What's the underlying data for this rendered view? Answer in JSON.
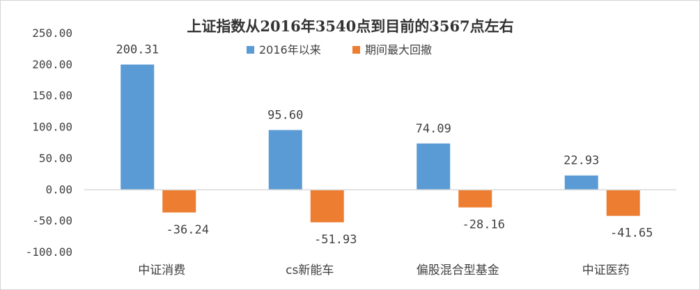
{
  "chart_data": {
    "type": "bar",
    "title": "上证指数从2016年3540点到目前的3567点左右",
    "categories": [
      "中证消费",
      "cs新能车",
      "偏股混合型基金",
      "中证医药"
    ],
    "series": [
      {
        "name": "2016年以来",
        "values": [
          200.31,
          95.6,
          74.09,
          22.93
        ],
        "labels": [
          "200.31",
          "95.60",
          "74.09",
          "22.93"
        ],
        "color": "#5b9bd5"
      },
      {
        "name": "期间最大回撤",
        "values": [
          -36.24,
          -51.93,
          -28.16,
          -41.65
        ],
        "labels": [
          "-36.24",
          "-51.93",
          "-28.16",
          "-41.65"
        ],
        "color": "#ed7d31"
      }
    ],
    "ylim": [
      -100,
      250
    ],
    "yticks": [
      250,
      200,
      150,
      100,
      50,
      0,
      -50,
      -100
    ],
    "ytick_labels": [
      "250.00",
      "200.00",
      "150.00",
      "100.00",
      "50.00",
      "0.00",
      "-50.00",
      "-100.00"
    ],
    "grid": false,
    "legend": "top-center",
    "axis_color": "#d9d9d9"
  }
}
